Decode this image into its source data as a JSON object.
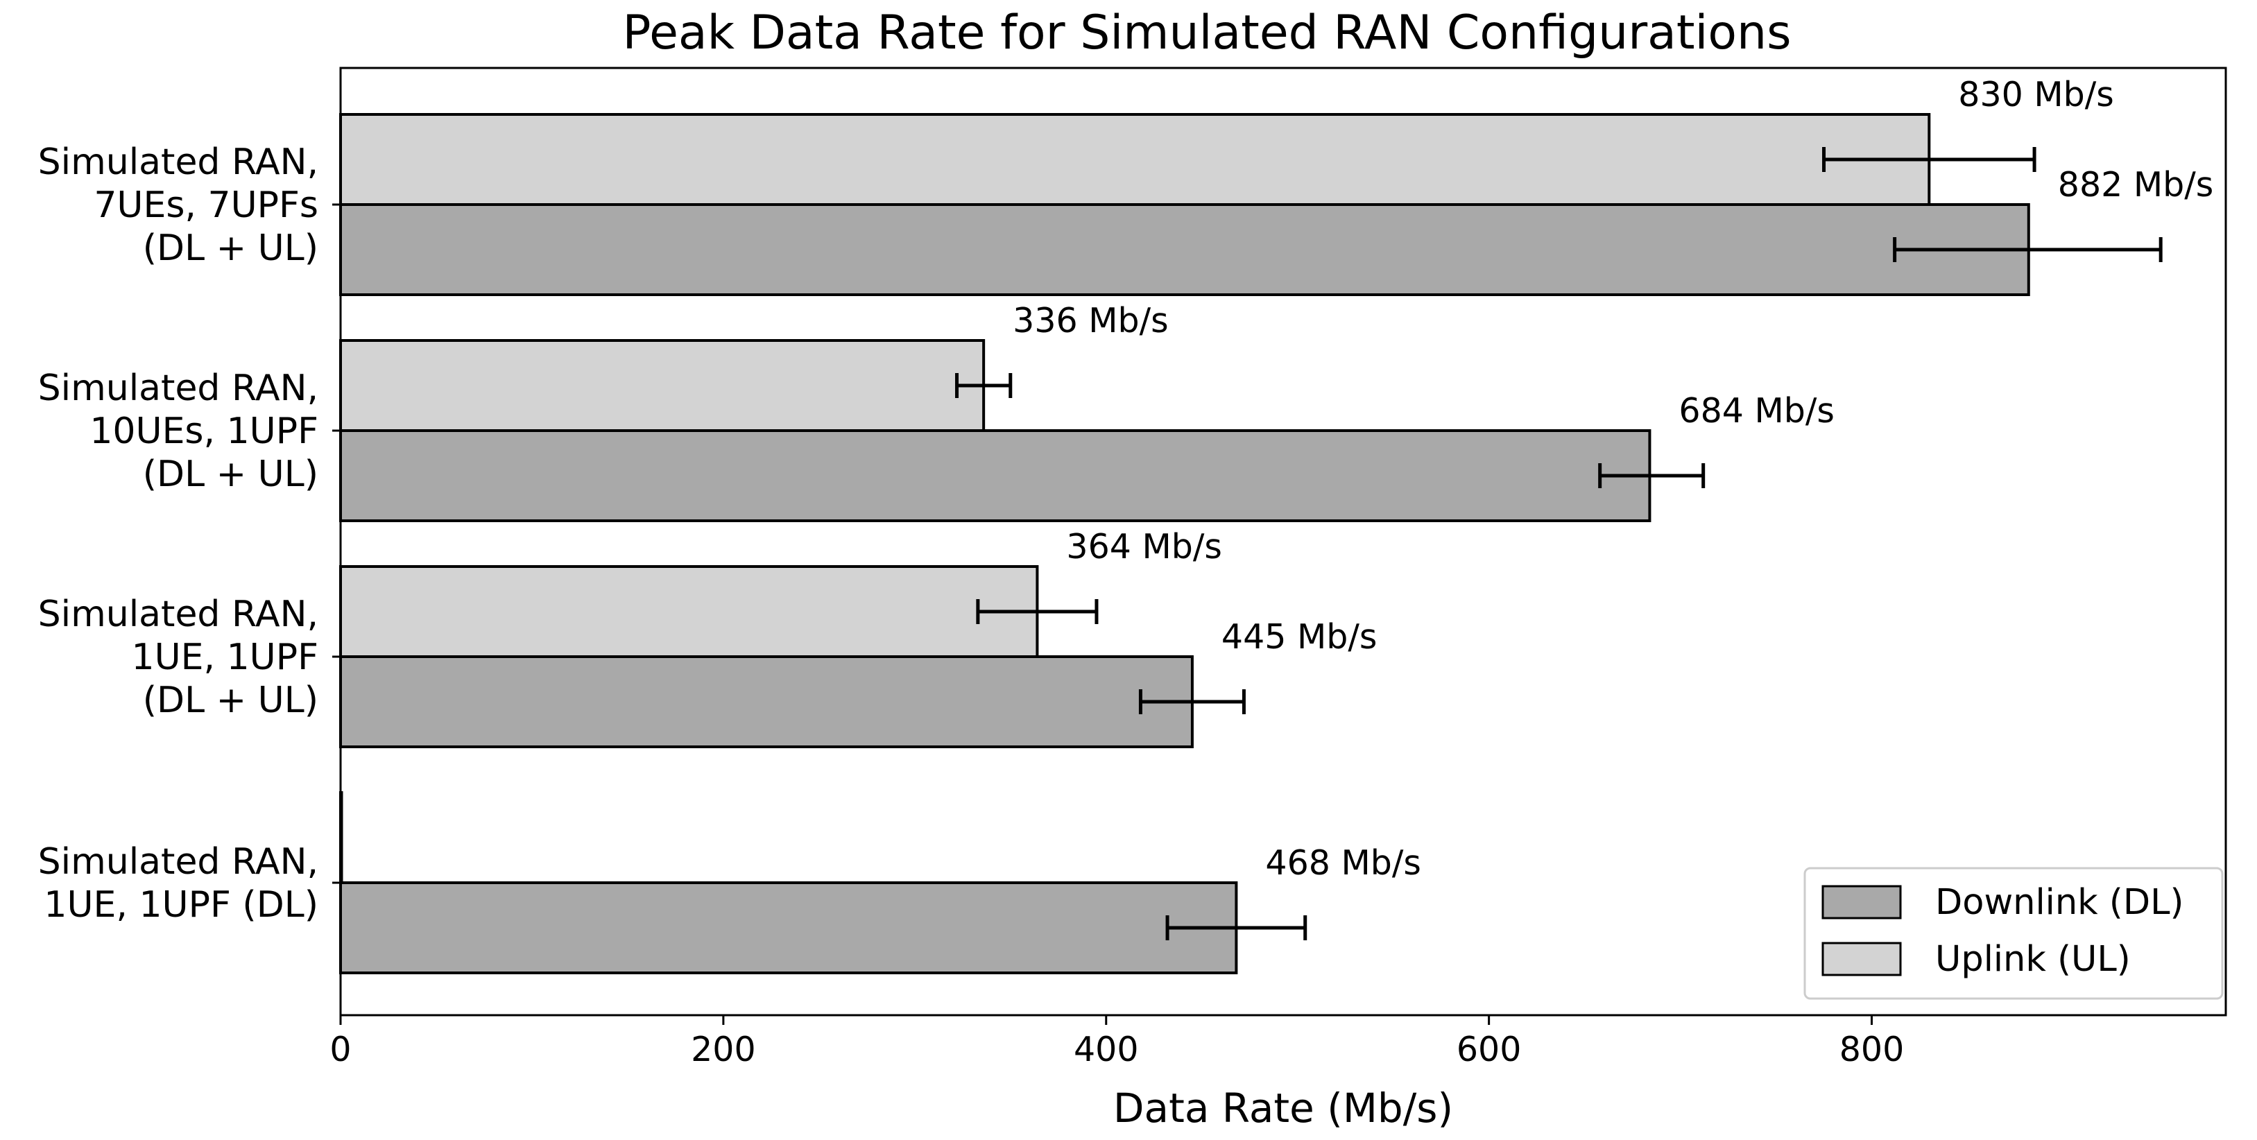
{
  "chart_data": {
    "type": "bar",
    "orientation": "horizontal",
    "title": "Peak Data Rate for Simulated RAN Configurations",
    "xlabel": "Data Rate (Mb/s)",
    "ylabel": "",
    "xlim": [
      0,
      985
    ],
    "xticks": [
      0,
      200,
      400,
      600,
      800
    ],
    "grid": false,
    "legend_position": "bottom-right",
    "categories": [
      [
        "Simulated RAN,",
        "7UEs, 7UPFs",
        "(DL + UL)"
      ],
      [
        "Simulated RAN,",
        "10UEs, 1UPF",
        "(DL + UL)"
      ],
      [
        "Simulated RAN,",
        "1UE, 1UPF",
        "(DL + UL)"
      ],
      [
        "Simulated RAN,",
        "1UE, 1UPF (DL)"
      ]
    ],
    "series": [
      {
        "name": "Downlink (DL)",
        "color": "#a9a9a9",
        "values": [
          882,
          684,
          445,
          468
        ],
        "error_low": [
          812,
          658,
          418,
          432
        ],
        "error_high": [
          951,
          712,
          472,
          504
        ],
        "labels": [
          "882 Mb/s",
          "684 Mb/s",
          "445 Mb/s",
          "468 Mb/s"
        ]
      },
      {
        "name": "Uplink (UL)",
        "color": "#d3d3d3",
        "values": [
          830,
          336,
          364,
          0
        ],
        "error_low": [
          775,
          322,
          333,
          null
        ],
        "error_high": [
          885,
          350,
          395,
          null
        ],
        "labels": [
          "830 Mb/s",
          "336 Mb/s",
          "364 Mb/s",
          null
        ]
      }
    ]
  }
}
